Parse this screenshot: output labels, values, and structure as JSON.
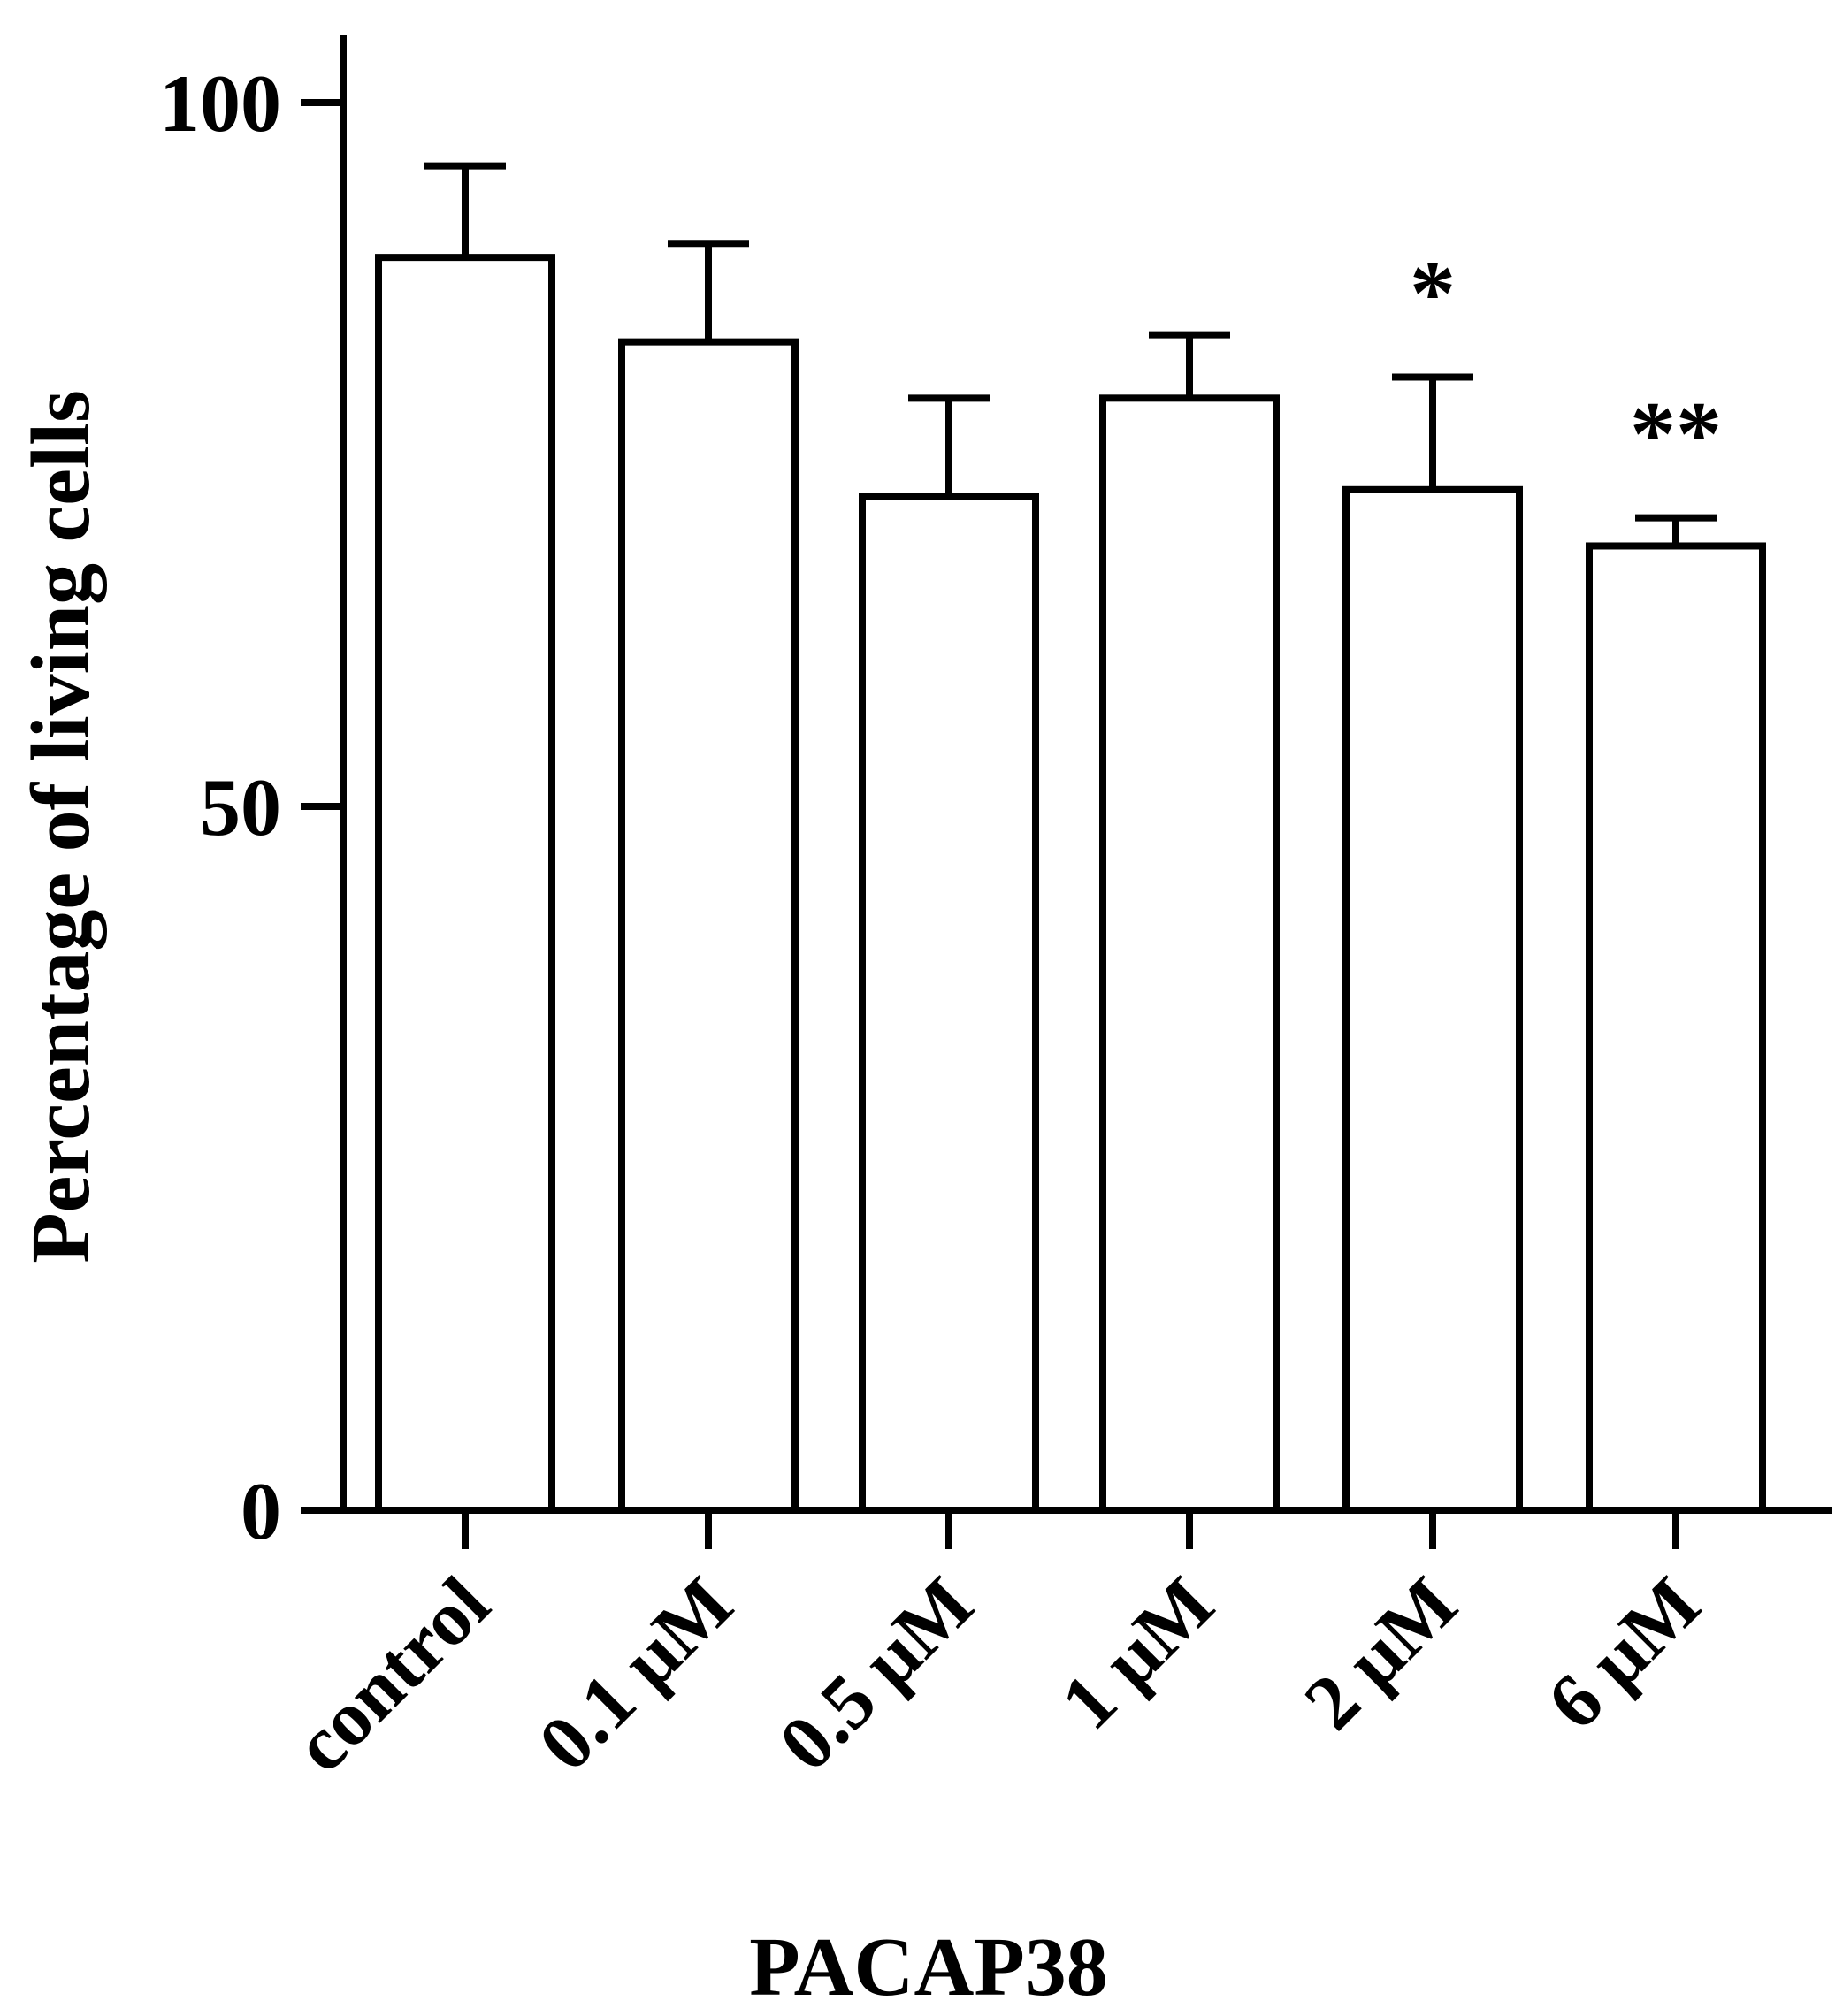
{
  "chart_data": {
    "type": "bar",
    "categories": [
      "control",
      "0.1 μM",
      "0.5 μM",
      "1 μM",
      "2 μM",
      "6 μM"
    ],
    "series": [
      {
        "values": [
          89,
          83,
          72,
          79,
          72.5,
          68.5
        ],
        "error": [
          6.5,
          7,
          7,
          4.5,
          8,
          2
        ]
      }
    ],
    "significance": [
      "",
      "",
      "",
      "",
      "*",
      "**"
    ],
    "xlabel": "PACAP38",
    "ylabel": "Percentage of living cells",
    "ylim": [
      0,
      100
    ],
    "yticks": [
      0,
      50,
      100
    ],
    "grid": false,
    "legend": "none",
    "bar_fill": "#ffffff",
    "stroke_color": "#000000"
  }
}
